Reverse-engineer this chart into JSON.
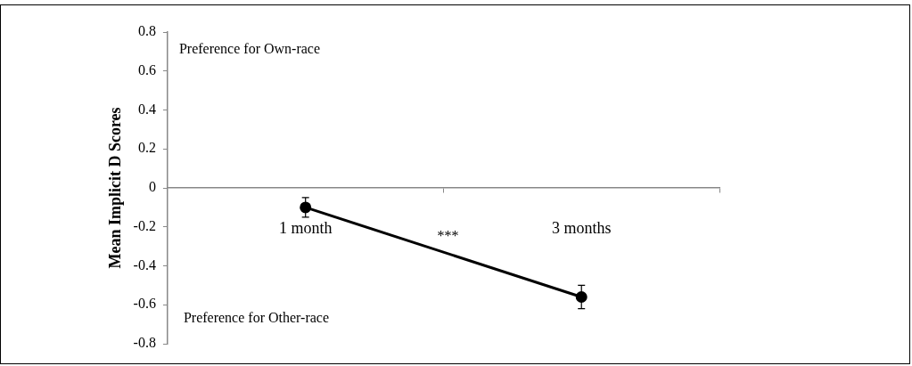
{
  "chart_data": {
    "type": "line",
    "ylabel": "Mean Implicit D Scores",
    "categories": [
      "1 month",
      "3 months"
    ],
    "series": [
      {
        "color": "#000000",
        "values": [
          -0.1,
          -0.56
        ],
        "errors": [
          0.05,
          0.06
        ]
      }
    ],
    "ylim": [
      -0.8,
      0.8
    ],
    "yticks": [
      -0.8,
      -0.6,
      -0.4,
      -0.2,
      0,
      0.2,
      0.4,
      0.6,
      0.8
    ],
    "marker": "circle",
    "line_style": "solid",
    "grid": false,
    "legend": false,
    "annotations": [
      "Preference for Own-race",
      "Preference for Other-race",
      "***"
    ]
  }
}
